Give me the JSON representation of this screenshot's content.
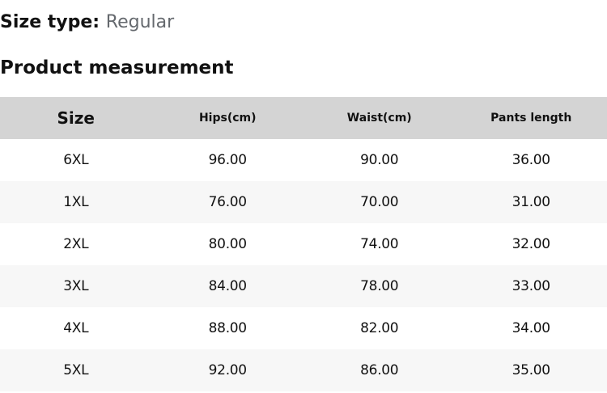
{
  "size_type": {
    "label": "Size type:",
    "value": "Regular"
  },
  "section_title": "Product measurement",
  "table": {
    "columns": [
      "Size",
      "Hips(cm)",
      "Waist(cm)",
      "Pants length"
    ],
    "rows": [
      [
        "6XL",
        "96.00",
        "90.00",
        "36.00"
      ],
      [
        "1XL",
        "76.00",
        "70.00",
        "31.00"
      ],
      [
        "2XL",
        "80.00",
        "74.00",
        "32.00"
      ],
      [
        "3XL",
        "84.00",
        "78.00",
        "33.00"
      ],
      [
        "4XL",
        "88.00",
        "82.00",
        "34.00"
      ],
      [
        "5XL",
        "92.00",
        "86.00",
        "35.00"
      ]
    ]
  },
  "colors": {
    "header_bg": "#d4d4d4",
    "row_alt_bg": "#f7f7f7",
    "text": "#111111",
    "muted": "#65696e"
  }
}
